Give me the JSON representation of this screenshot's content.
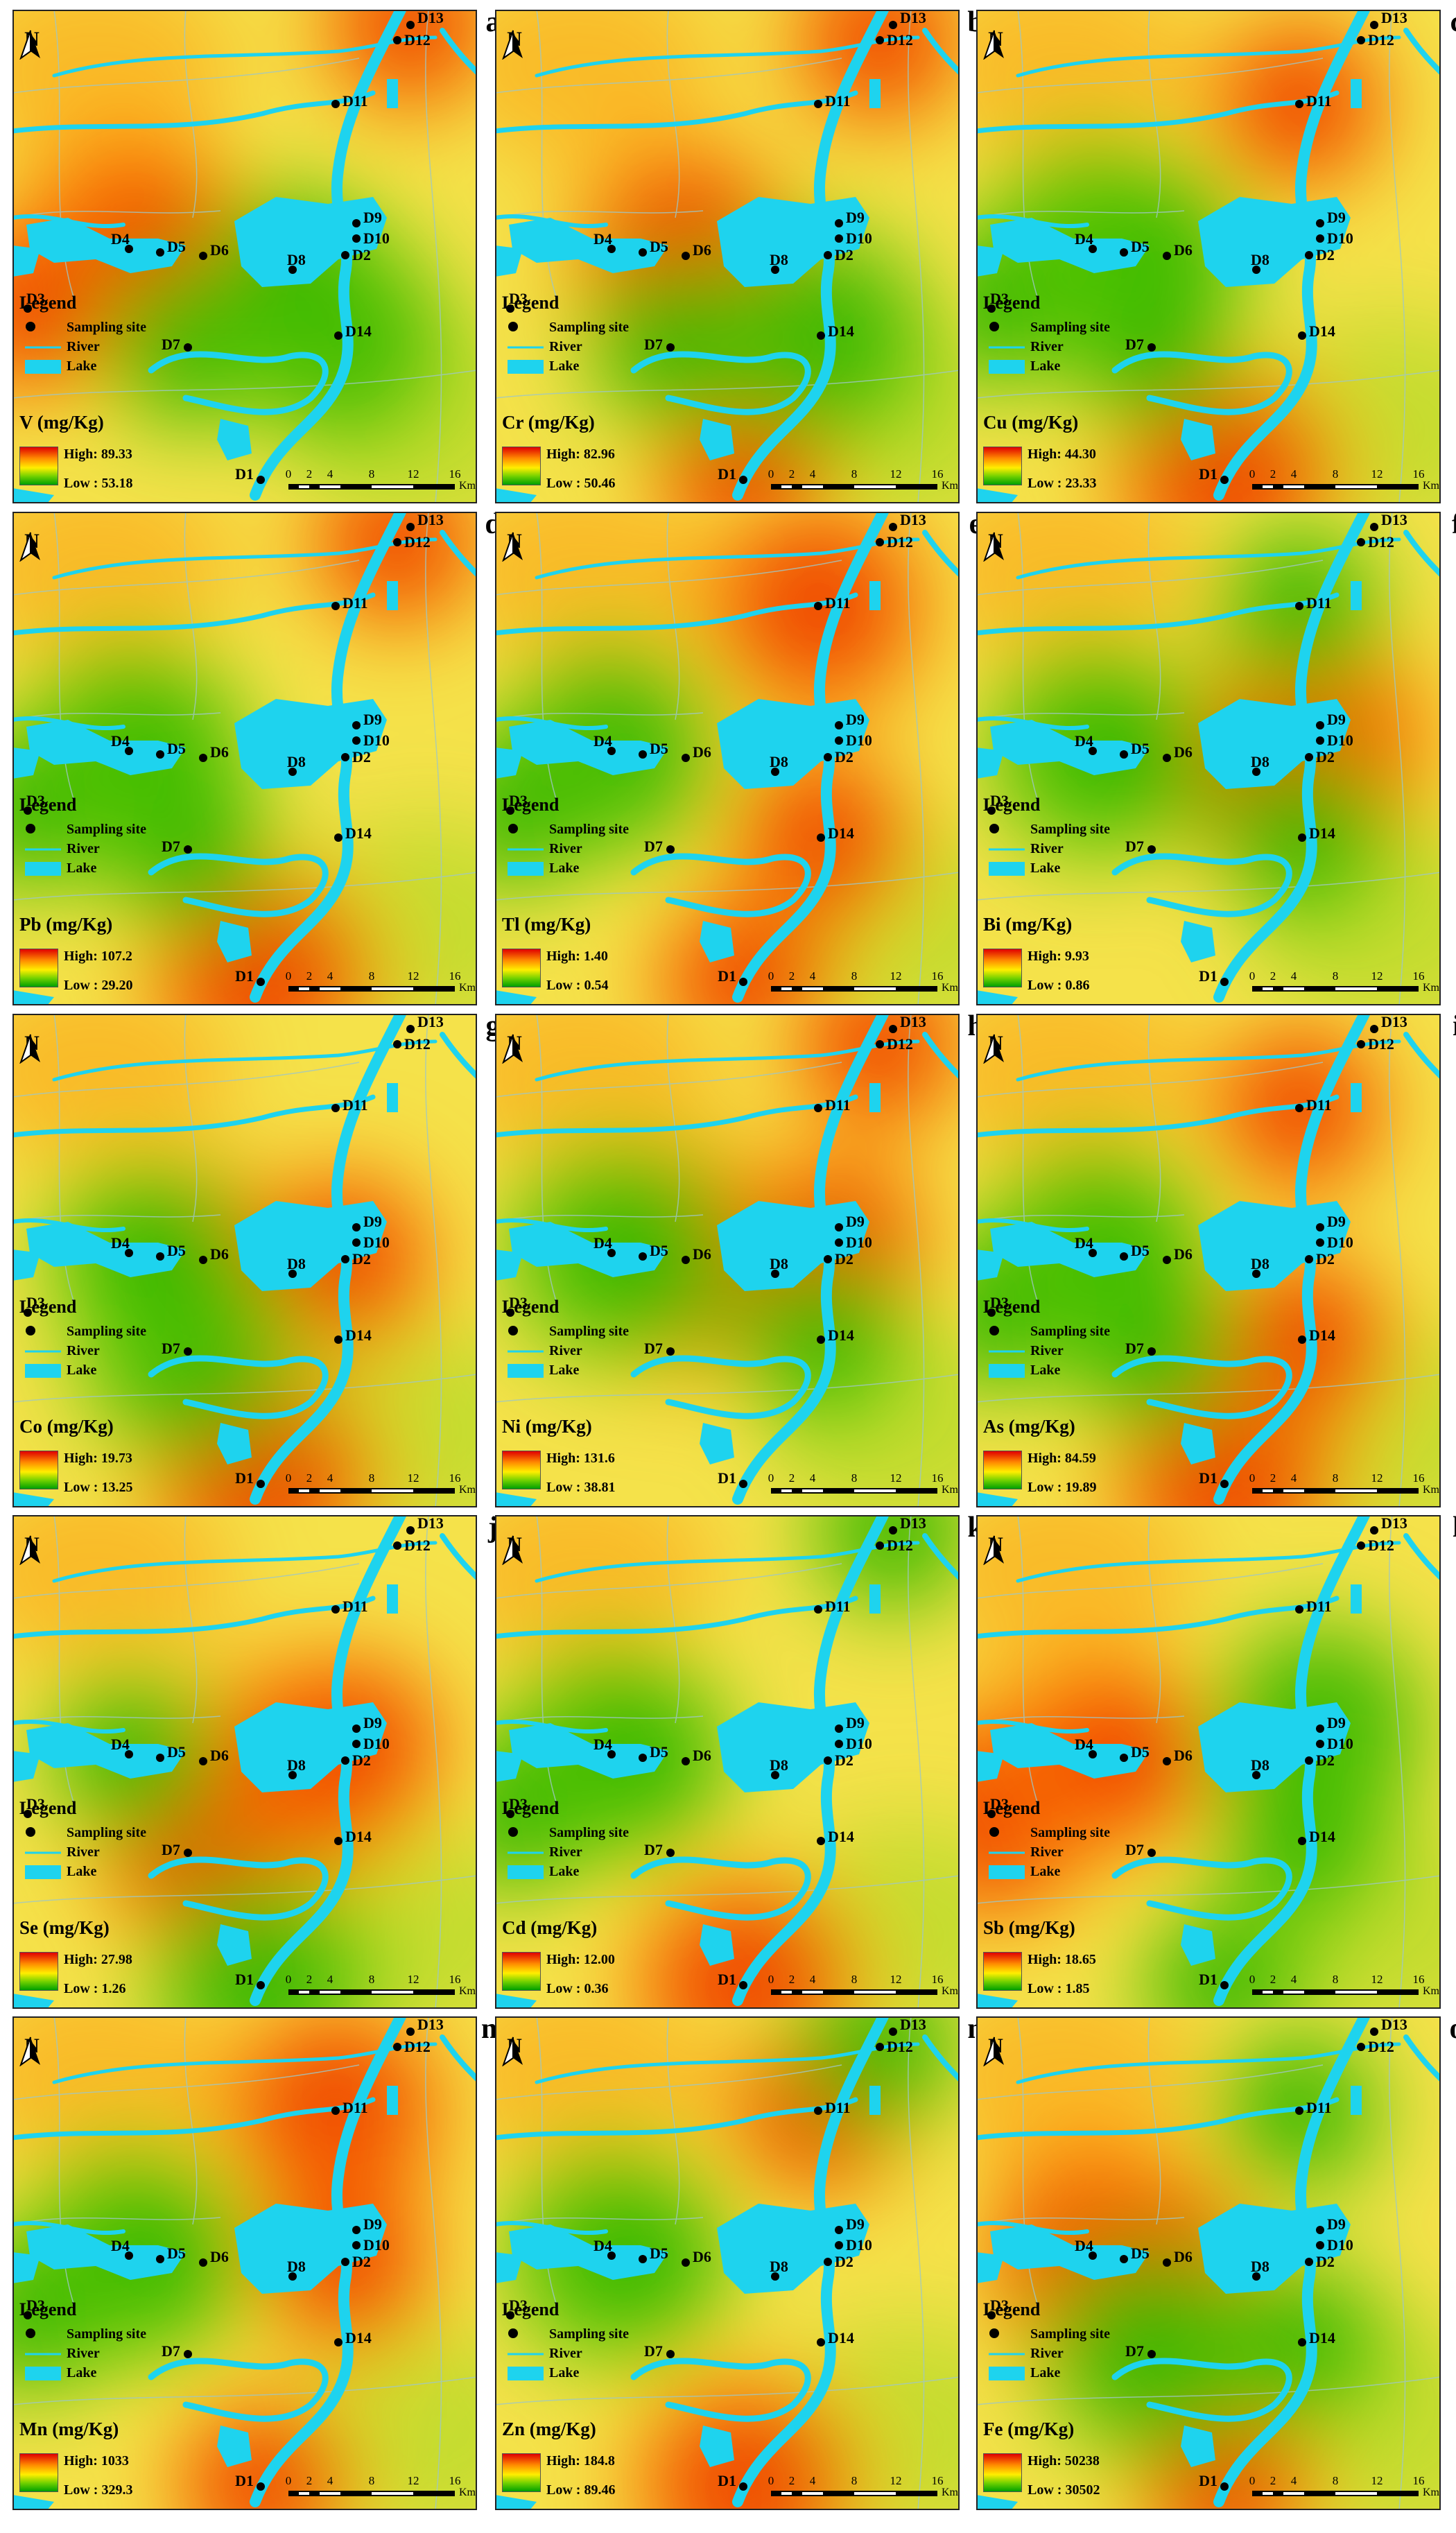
{
  "legend": {
    "title": "Legend",
    "sampling_site": "Sampling site",
    "river": "River",
    "lake": "Lake"
  },
  "north_label": "N",
  "scale": {
    "ticks": [
      "0",
      "2",
      "4",
      "8",
      "12",
      "16"
    ],
    "unit": "Km"
  },
  "colors": {
    "lake": "#1ed3ee",
    "high": "#e00000",
    "mid_high": "#ff8c00",
    "mid": "#ffee00",
    "mid_low": "#6fd000",
    "low": "#00a000"
  },
  "sites": [
    "D1",
    "D2",
    "D3",
    "D4",
    "D5",
    "D6",
    "D7",
    "D8",
    "D9",
    "D10",
    "D11",
    "D12",
    "D13",
    "D14"
  ],
  "panels": [
    {
      "letter": "a",
      "element": "V (mg/Kg)",
      "high": "High: 89.33",
      "low": "Low : 53.18",
      "hot_sites": [
        "D4",
        "D5",
        "D3",
        "D13"
      ],
      "cold_sites": [
        "D14",
        "D7",
        "D8"
      ]
    },
    {
      "letter": "b",
      "element": "Cr (mg/Kg)",
      "high": "High: 82.96",
      "low": "Low : 50.46",
      "hot_sites": [
        "D6",
        "D1",
        "D12"
      ],
      "cold_sites": [
        "D14",
        "D7"
      ]
    },
    {
      "letter": "c",
      "element": "Cu (mg/Kg)",
      "high": "High: 44.30",
      "low": "Low : 23.33",
      "hot_sites": [
        "D1",
        "D11"
      ],
      "cold_sites": [
        "D4",
        "D5",
        "D6",
        "D7",
        "D3"
      ]
    },
    {
      "letter": "d",
      "element": "Pb (mg/Kg)",
      "high": "High: 107.2",
      "low": "Low : 29.20",
      "hot_sites": [
        "D1",
        "D12"
      ],
      "cold_sites": [
        "D4",
        "D5",
        "D7",
        "D3"
      ]
    },
    {
      "letter": "e",
      "element": "Tl (mg/Kg)",
      "high": "High: 1.40",
      "low": "Low : 0.54",
      "hot_sites": [
        "D11",
        "D14",
        "D1"
      ],
      "cold_sites": [
        "D4",
        "D3"
      ]
    },
    {
      "letter": "f",
      "element": "Bi (mg/Kg)",
      "high": "High: 9.93",
      "low": "Low : 0.86",
      "hot_sites": [
        "D10",
        "D2",
        "D8"
      ],
      "cold_sites": [
        "D4",
        "D5",
        "D14",
        "D11"
      ]
    },
    {
      "letter": "g",
      "element": "Co (mg/Kg)",
      "high": "High: 19.73",
      "low": "Low : 13.25",
      "hot_sites": [
        "D1",
        "D6",
        "D2"
      ],
      "cold_sites": [
        "D7",
        "D4",
        "D5"
      ]
    },
    {
      "letter": "h",
      "element": "Ni (mg/Kg)",
      "high": "High: 131.6",
      "low": "Low : 38.81",
      "hot_sites": [
        "D6",
        "D10",
        "D12"
      ],
      "cold_sites": [
        "D4",
        "D5",
        "D14"
      ]
    },
    {
      "letter": "i",
      "element": "As (mg/Kg)",
      "high": "High: 84.59",
      "low": "Low : 19.89",
      "hot_sites": [
        "D1",
        "D11",
        "D14"
      ],
      "cold_sites": [
        "D4",
        "D5",
        "D3",
        "D7"
      ]
    },
    {
      "letter": "j",
      "element": "Se (mg/Kg)",
      "high": "High: 27.98",
      "low": "Low : 1.26",
      "hot_sites": [
        "D8",
        "D7",
        "D10"
      ],
      "cold_sites": [
        "D1",
        "D4"
      ]
    },
    {
      "letter": "k",
      "element": "Cd (mg/Kg)",
      "high": "High: 12.00",
      "low": "Low : 0.36",
      "hot_sites": [
        "D1"
      ],
      "cold_sites": [
        "D4",
        "D5",
        "D3",
        "D13"
      ]
    },
    {
      "letter": "l",
      "element": "Sb (mg/Kg)",
      "high": "High: 18.65",
      "low": "Low : 1.85",
      "hot_sites": [
        "D3",
        "D4",
        "D5"
      ],
      "cold_sites": [
        "D9",
        "D14",
        "D1"
      ]
    },
    {
      "letter": "m",
      "element": "Mn (mg/Kg)",
      "high": "High: 1033",
      "low": "Low : 329.3",
      "hot_sites": [
        "D11",
        "D1",
        "D2"
      ],
      "cold_sites": [
        "D4",
        "D5",
        "D3"
      ]
    },
    {
      "letter": "n",
      "element": "Zn (mg/Kg)",
      "high": "High: 184.8",
      "low": "Low : 89.46",
      "hot_sites": [
        "D1",
        "D11"
      ],
      "cold_sites": [
        "D4",
        "D5",
        "D12"
      ]
    },
    {
      "letter": "o",
      "element": "Fe (mg/Kg)",
      "high": "High: 50238",
      "low": "Low : 30502",
      "hot_sites": [
        "D4",
        "D6",
        "D1"
      ],
      "cold_sites": [
        "D7",
        "D14",
        "D11"
      ]
    }
  ]
}
